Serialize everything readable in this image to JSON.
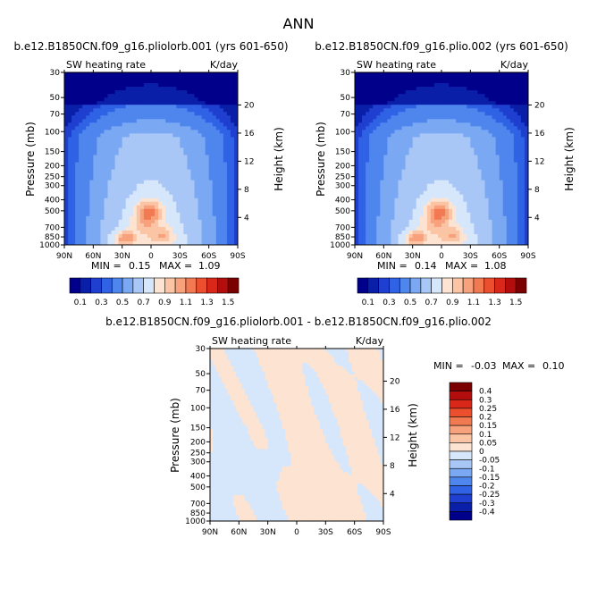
{
  "page_title": "ANN",
  "colors": {
    "blues": [
      "#00008b",
      "#0a1fa8",
      "#1e3fcf",
      "#2f62e4",
      "#4f86ee",
      "#7aa8f2",
      "#a9c7f6",
      "#d6e6fb"
    ],
    "reds": [
      "#fde3d1",
      "#fbc4a4",
      "#f7a27c",
      "#f27a53",
      "#ec4f2e",
      "#d9281a",
      "#b30d0d",
      "#7b0000"
    ]
  },
  "chart_data": [
    {
      "type": "heatmap",
      "title": "b.e12.B1850CN.f09_g16.pliolorb.001 (yrs 601-650)",
      "variable_label": "SW heating rate",
      "units_label": "K/day",
      "ylabel": "Pressure (mb)",
      "ylabel_right": "Height (km)",
      "x_ticks": [
        "90N",
        "60N",
        "30N",
        "0",
        "30S",
        "60S",
        "90S"
      ],
      "y_ticks": [
        "30",
        "50",
        "70",
        "100",
        "150",
        "200",
        "250",
        "300",
        "400",
        "500",
        "700",
        "850",
        "1000"
      ],
      "height_ticks": [
        "4",
        "8",
        "12",
        "16",
        "20"
      ],
      "min_label": "MIN =",
      "min_value": "0.15",
      "max_label": "MAX =",
      "max_value": "1.09",
      "colorbar_labels": [
        "0.1",
        "0.3",
        "0.5",
        "0.7",
        "0.9",
        "1.1",
        "1.3",
        "1.5"
      ],
      "levels": [
        0.1,
        0.2,
        0.3,
        0.4,
        0.5,
        0.6,
        0.7,
        0.8,
        0.9,
        1.0,
        1.1,
        1.2,
        1.3,
        1.4,
        1.5
      ],
      "grid": false
    },
    {
      "type": "heatmap",
      "title": "b.e12.B1850CN.f09_g16.plio.002 (yrs 601-650)",
      "variable_label": "SW heating rate",
      "units_label": "K/day",
      "ylabel": "Pressure (mb)",
      "ylabel_right": "Height (km)",
      "x_ticks": [
        "90N",
        "60N",
        "30N",
        "0",
        "30S",
        "60S",
        "90S"
      ],
      "y_ticks": [
        "30",
        "50",
        "70",
        "100",
        "150",
        "200",
        "250",
        "300",
        "400",
        "500",
        "700",
        "850",
        "1000"
      ],
      "height_ticks": [
        "4",
        "8",
        "12",
        "16",
        "20"
      ],
      "min_label": "MIN =",
      "min_value": "0.14",
      "max_label": "MAX =",
      "max_value": "1.08",
      "colorbar_labels": [
        "0.1",
        "0.3",
        "0.5",
        "0.7",
        "0.9",
        "1.1",
        "1.3",
        "1.5"
      ],
      "levels": [
        0.1,
        0.2,
        0.3,
        0.4,
        0.5,
        0.6,
        0.7,
        0.8,
        0.9,
        1.0,
        1.1,
        1.2,
        1.3,
        1.4,
        1.5
      ],
      "grid": false
    },
    {
      "type": "heatmap",
      "title": "b.e12.B1850CN.f09_g16.pliolorb.001 - b.e12.B1850CN.f09_g16.plio.002",
      "variable_label": "SW heating rate",
      "units_label": "K/day",
      "ylabel": "Pressure (mb)",
      "ylabel_right": "Height (km)",
      "x_ticks": [
        "90N",
        "60N",
        "30N",
        "0",
        "30S",
        "60S",
        "90S"
      ],
      "y_ticks": [
        "30",
        "50",
        "70",
        "100",
        "150",
        "200",
        "250",
        "300",
        "400",
        "500",
        "700",
        "850",
        "1000"
      ],
      "height_ticks": [
        "4",
        "8",
        "12",
        "16",
        "20"
      ],
      "min_label": "MIN =",
      "min_value": "-0.03",
      "max_label": "MAX =",
      "max_value": "0.10",
      "colorbar_labels": [
        "0.4",
        "0.3",
        "0.25",
        "0.2",
        "0.15",
        "0.1",
        "0.05",
        "0",
        "-0.05",
        "-0.1",
        "-0.15",
        "-0.2",
        "-0.25",
        "-0.3",
        "-0.4"
      ],
      "visible_categories": [
        "negative (-0.05 to 0)",
        "positive (0 to 0.05)"
      ],
      "grid": false
    }
  ]
}
